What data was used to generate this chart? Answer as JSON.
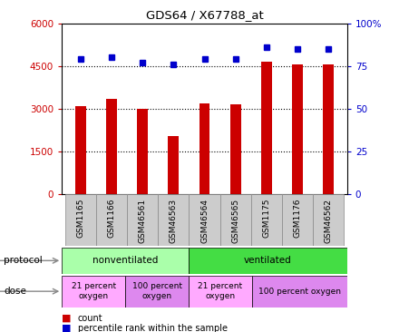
{
  "title": "GDS64 / X67788_at",
  "samples": [
    "GSM1165",
    "GSM1166",
    "GSM46561",
    "GSM46563",
    "GSM46564",
    "GSM46565",
    "GSM1175",
    "GSM1176",
    "GSM46562"
  ],
  "counts": [
    3100,
    3350,
    2980,
    2050,
    3200,
    3150,
    4650,
    4550,
    4570
  ],
  "percentiles": [
    79,
    80,
    77,
    76,
    79,
    79,
    86,
    85,
    85
  ],
  "bar_color": "#cc0000",
  "dot_color": "#0000cc",
  "ylim_left": [
    0,
    6000
  ],
  "ylim_right": [
    0,
    100
  ],
  "yticks_left": [
    0,
    1500,
    3000,
    4500,
    6000
  ],
  "ytick_labels_left": [
    "0",
    "1500",
    "3000",
    "4500",
    "6000"
  ],
  "yticks_right": [
    0,
    25,
    50,
    75,
    100
  ],
  "ytick_labels_right": [
    "0",
    "25",
    "50",
    "75",
    "100%"
  ],
  "grid_vals": [
    1500,
    3000,
    4500
  ],
  "grid_color": "#000000",
  "background_color": "#ffffff",
  "protocol_groups": [
    {
      "label": "nonventilated",
      "start": 0,
      "end": 4,
      "color": "#aaffaa"
    },
    {
      "label": "ventilated",
      "start": 4,
      "end": 9,
      "color": "#44dd44"
    }
  ],
  "dose_groups": [
    {
      "label": "21 percent\noxygen",
      "start": 0,
      "end": 2,
      "color": "#ffaaff"
    },
    {
      "label": "100 percent\noxygen",
      "start": 2,
      "end": 4,
      "color": "#dd88ee"
    },
    {
      "label": "21 percent\noxygen",
      "start": 4,
      "end": 6,
      "color": "#ffaaff"
    },
    {
      "label": "100 percent oxygen",
      "start": 6,
      "end": 9,
      "color": "#dd88ee"
    }
  ],
  "legend_count_color": "#cc0000",
  "legend_percentile_color": "#0000cc",
  "bar_width": 0.35,
  "xtick_bg_color": "#cccccc",
  "xtick_border_color": "#888888"
}
